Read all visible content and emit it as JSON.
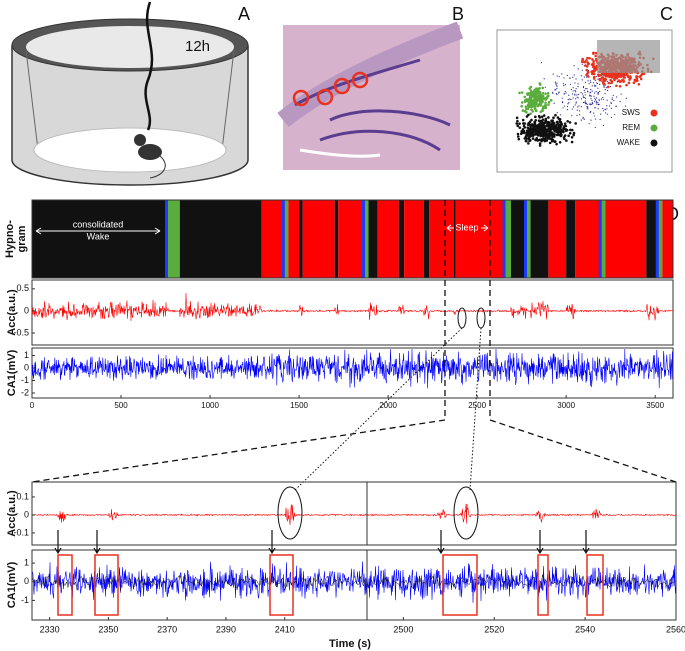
{
  "panel_labels": [
    "A",
    "B",
    "C",
    "D"
  ],
  "panel_a": {
    "annotation": "12h"
  },
  "panel_c": {
    "legend": [
      {
        "name": "SWS",
        "color": "#e8321e"
      },
      {
        "name": "REM",
        "color": "#5aad3c"
      },
      {
        "name": "WAKE",
        "color": "#111111"
      }
    ]
  },
  "panel_d": {
    "xlim": [
      0,
      3600
    ],
    "xticks": [
      0,
      500,
      1000,
      1500,
      2000,
      2500,
      3000,
      3500
    ],
    "hypnogram": {
      "ylabel": [
        "Hypno-",
        "gram"
      ],
      "annotation": [
        "consolidated",
        "Wake"
      ],
      "sleep_label": "Sleep",
      "segments": [
        {
          "state": "WAKE",
          "start": 0,
          "end": 764
        },
        {
          "state": "REM",
          "start": 764,
          "end": 830
        },
        {
          "state": "WAKE",
          "start": 830,
          "end": 1290
        },
        {
          "state": "SWS",
          "start": 1290,
          "end": 1420
        },
        {
          "state": "REM",
          "start": 1420,
          "end": 1440
        },
        {
          "state": "SWS",
          "start": 1440,
          "end": 1500
        },
        {
          "state": "WAKE",
          "start": 1500,
          "end": 1520
        },
        {
          "state": "SWS",
          "start": 1520,
          "end": 1700
        },
        {
          "state": "WAKE",
          "start": 1700,
          "end": 1720
        },
        {
          "state": "SWS",
          "start": 1720,
          "end": 1870
        },
        {
          "state": "REM",
          "start": 1870,
          "end": 1890
        },
        {
          "state": "WAKE",
          "start": 1890,
          "end": 1940
        },
        {
          "state": "SWS",
          "start": 1940,
          "end": 2060
        },
        {
          "state": "WAKE",
          "start": 2060,
          "end": 2090
        },
        {
          "state": "SWS",
          "start": 2090,
          "end": 2200
        },
        {
          "state": "WAKE",
          "start": 2200,
          "end": 2230
        },
        {
          "state": "SWS",
          "start": 2230,
          "end": 2370
        },
        {
          "state": "WAKE",
          "start": 2370,
          "end": 2380
        },
        {
          "state": "SWS",
          "start": 2380,
          "end": 2660
        },
        {
          "state": "REM",
          "start": 2660,
          "end": 2690
        },
        {
          "state": "WAKE",
          "start": 2690,
          "end": 2780
        },
        {
          "state": "REM",
          "start": 2780,
          "end": 2800
        },
        {
          "state": "WAKE",
          "start": 2800,
          "end": 2900
        },
        {
          "state": "SWS",
          "start": 2900,
          "end": 3000
        },
        {
          "state": "WAKE",
          "start": 3000,
          "end": 3050
        },
        {
          "state": "SWS",
          "start": 3050,
          "end": 3200
        },
        {
          "state": "REM",
          "start": 3200,
          "end": 3220
        },
        {
          "state": "SWS",
          "start": 3220,
          "end": 3450
        },
        {
          "state": "WAKE",
          "start": 3450,
          "end": 3520
        },
        {
          "state": "REM",
          "start": 3520,
          "end": 3540
        },
        {
          "state": "SWS",
          "start": 3540,
          "end": 3600
        }
      ]
    },
    "acc": {
      "ylabel": "Acc(a.u.)",
      "ylim": [
        -0.77,
        0.7
      ],
      "yticks": [
        0.5,
        0,
        -0.5
      ]
    },
    "ca1": {
      "ylabel": "CA1(mV)",
      "ylim": [
        -2.4,
        1.6
      ],
      "yticks": [
        1,
        0,
        -1,
        -2
      ]
    },
    "zoom_acc": {
      "ylabel": "Acc(a.u.)",
      "ylim": [
        -0.167,
        0.183
      ],
      "yticks": [
        0.1,
        0,
        -0.1
      ]
    },
    "zoom_ca1": {
      "ylabel": "CA1(mV)",
      "ylim": [
        -2.05,
        1.7
      ],
      "yticks": [
        1,
        0,
        -1
      ]
    },
    "zoom_left": {
      "xlim": [
        2324,
        2438
      ],
      "xticks": [
        2330,
        2350,
        2370,
        2390,
        2410
      ]
    },
    "zoom_right": {
      "xlim": [
        2492,
        2560
      ],
      "xticks": [
        2500,
        2520,
        2540,
        2560
      ]
    },
    "xlabel": "Time (s)"
  }
}
